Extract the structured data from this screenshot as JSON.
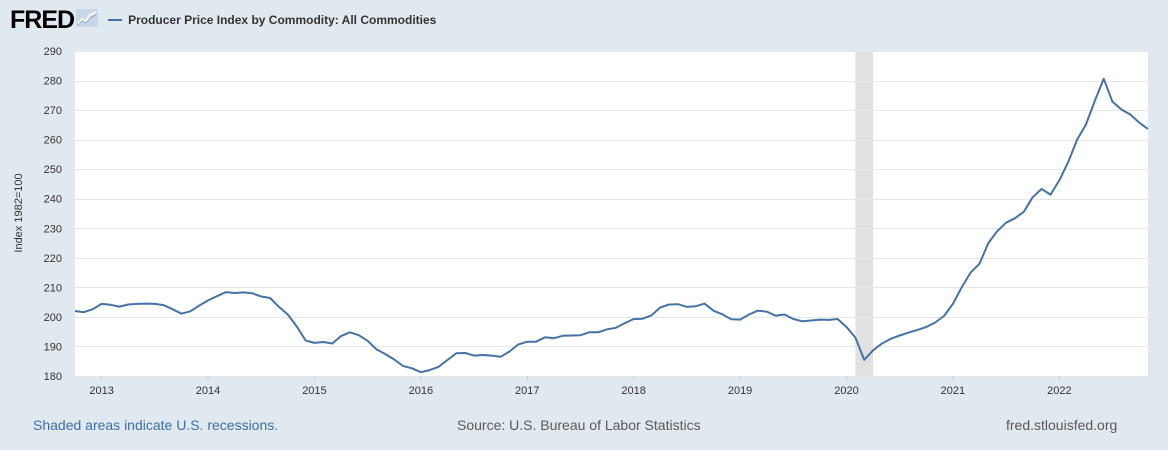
{
  "header": {
    "logo_text": "FRED",
    "legend_label": "Producer Price Index by Commodity: All Commodities"
  },
  "footer": {
    "recession_note": "Shaded areas indicate U.S. recessions.",
    "source": "Source: U.S. Bureau of Labor Statistics",
    "site": "fred.stlouisfed.org"
  },
  "colors": {
    "series": "#4572a7",
    "recession": "#e1e1e1",
    "background": "#e1e9f0",
    "plot_background": "#ffffff",
    "grid": "#e6e6e6"
  },
  "chart_data": {
    "type": "line",
    "title": "",
    "xlabel": "",
    "ylabel": "Index 1982=100",
    "ylim": [
      180,
      290
    ],
    "yticks": [
      180,
      190,
      200,
      210,
      220,
      230,
      240,
      250,
      260,
      270,
      280,
      290
    ],
    "xlim": [
      "2012-10",
      "2022-11"
    ],
    "xticks": [
      "2013",
      "2014",
      "2015",
      "2016",
      "2017",
      "2018",
      "2019",
      "2020",
      "2021",
      "2022"
    ],
    "grid": true,
    "legend": "top-left",
    "recessions": [
      {
        "start": "2020-02",
        "end": "2020-04"
      }
    ],
    "series": [
      {
        "name": "Producer Price Index by Commodity: All Commodities",
        "x": [
          "2012-10",
          "2012-11",
          "2012-12",
          "2013-01",
          "2013-02",
          "2013-03",
          "2013-04",
          "2013-05",
          "2013-06",
          "2013-07",
          "2013-08",
          "2013-09",
          "2013-10",
          "2013-11",
          "2013-12",
          "2014-01",
          "2014-02",
          "2014-03",
          "2014-04",
          "2014-05",
          "2014-06",
          "2014-07",
          "2014-08",
          "2014-09",
          "2014-10",
          "2014-11",
          "2014-12",
          "2015-01",
          "2015-02",
          "2015-03",
          "2015-04",
          "2015-05",
          "2015-06",
          "2015-07",
          "2015-08",
          "2015-09",
          "2015-10",
          "2015-11",
          "2015-12",
          "2016-01",
          "2016-02",
          "2016-03",
          "2016-04",
          "2016-05",
          "2016-06",
          "2016-07",
          "2016-08",
          "2016-09",
          "2016-10",
          "2016-11",
          "2016-12",
          "2017-01",
          "2017-02",
          "2017-03",
          "2017-04",
          "2017-05",
          "2017-06",
          "2017-07",
          "2017-08",
          "2017-09",
          "2017-10",
          "2017-11",
          "2017-12",
          "2018-01",
          "2018-02",
          "2018-03",
          "2018-04",
          "2018-05",
          "2018-06",
          "2018-07",
          "2018-08",
          "2018-09",
          "2018-10",
          "2018-11",
          "2018-12",
          "2019-01",
          "2019-02",
          "2019-03",
          "2019-04",
          "2019-05",
          "2019-06",
          "2019-07",
          "2019-08",
          "2019-09",
          "2019-10",
          "2019-11",
          "2019-12",
          "2020-01",
          "2020-02",
          "2020-03",
          "2020-04",
          "2020-05",
          "2020-06",
          "2020-07",
          "2020-08",
          "2020-09",
          "2020-10",
          "2020-11",
          "2020-12",
          "2021-01",
          "2021-02",
          "2021-03",
          "2021-04",
          "2021-05",
          "2021-06",
          "2021-07",
          "2021-08",
          "2021-09",
          "2021-10",
          "2021-11",
          "2021-12",
          "2022-01",
          "2022-02",
          "2022-03",
          "2022-04",
          "2022-05",
          "2022-06",
          "2022-07",
          "2022-08",
          "2022-09",
          "2022-10",
          "2022-11"
        ],
        "values": [
          202.0,
          201.6,
          202.6,
          204.4,
          204.1,
          203.5,
          204.2,
          204.4,
          204.5,
          204.4,
          204.0,
          202.6,
          201.1,
          201.9,
          203.8,
          205.6,
          207.0,
          208.4,
          208.1,
          208.3,
          208.0,
          206.9,
          206.4,
          203.4,
          200.8,
          196.8,
          192.0,
          191.2,
          191.5,
          191.0,
          193.5,
          194.8,
          193.8,
          191.9,
          189.0,
          187.4,
          185.6,
          183.4,
          182.6,
          181.3,
          182.0,
          183.1,
          185.4,
          187.7,
          187.8,
          186.9,
          187.1,
          186.9,
          186.5,
          188.3,
          190.7,
          191.6,
          191.6,
          193.1,
          192.8,
          193.6,
          193.7,
          193.8,
          194.8,
          194.8,
          195.8,
          196.3,
          197.9,
          199.3,
          199.4,
          200.5,
          203.2,
          204.2,
          204.3,
          203.4,
          203.6,
          204.5,
          202.1,
          200.9,
          199.2,
          199.1,
          200.8,
          202.1,
          201.8,
          200.4,
          200.8,
          199.3,
          198.5,
          198.8,
          199.1,
          199.0,
          199.3,
          196.6,
          193.0,
          185.5,
          188.7,
          191.0,
          192.6,
          193.7,
          194.7,
          195.6,
          196.6,
          198.1,
          200.3,
          204.4,
          210.1,
          215.0,
          218.0,
          225.0,
          229.0,
          231.9,
          233.4,
          235.6,
          240.5,
          243.3,
          241.4,
          246.2,
          252.4,
          260.0,
          265.1,
          273.1,
          280.6,
          272.8,
          270.2,
          268.5,
          265.8,
          263.6
        ]
      }
    ]
  }
}
